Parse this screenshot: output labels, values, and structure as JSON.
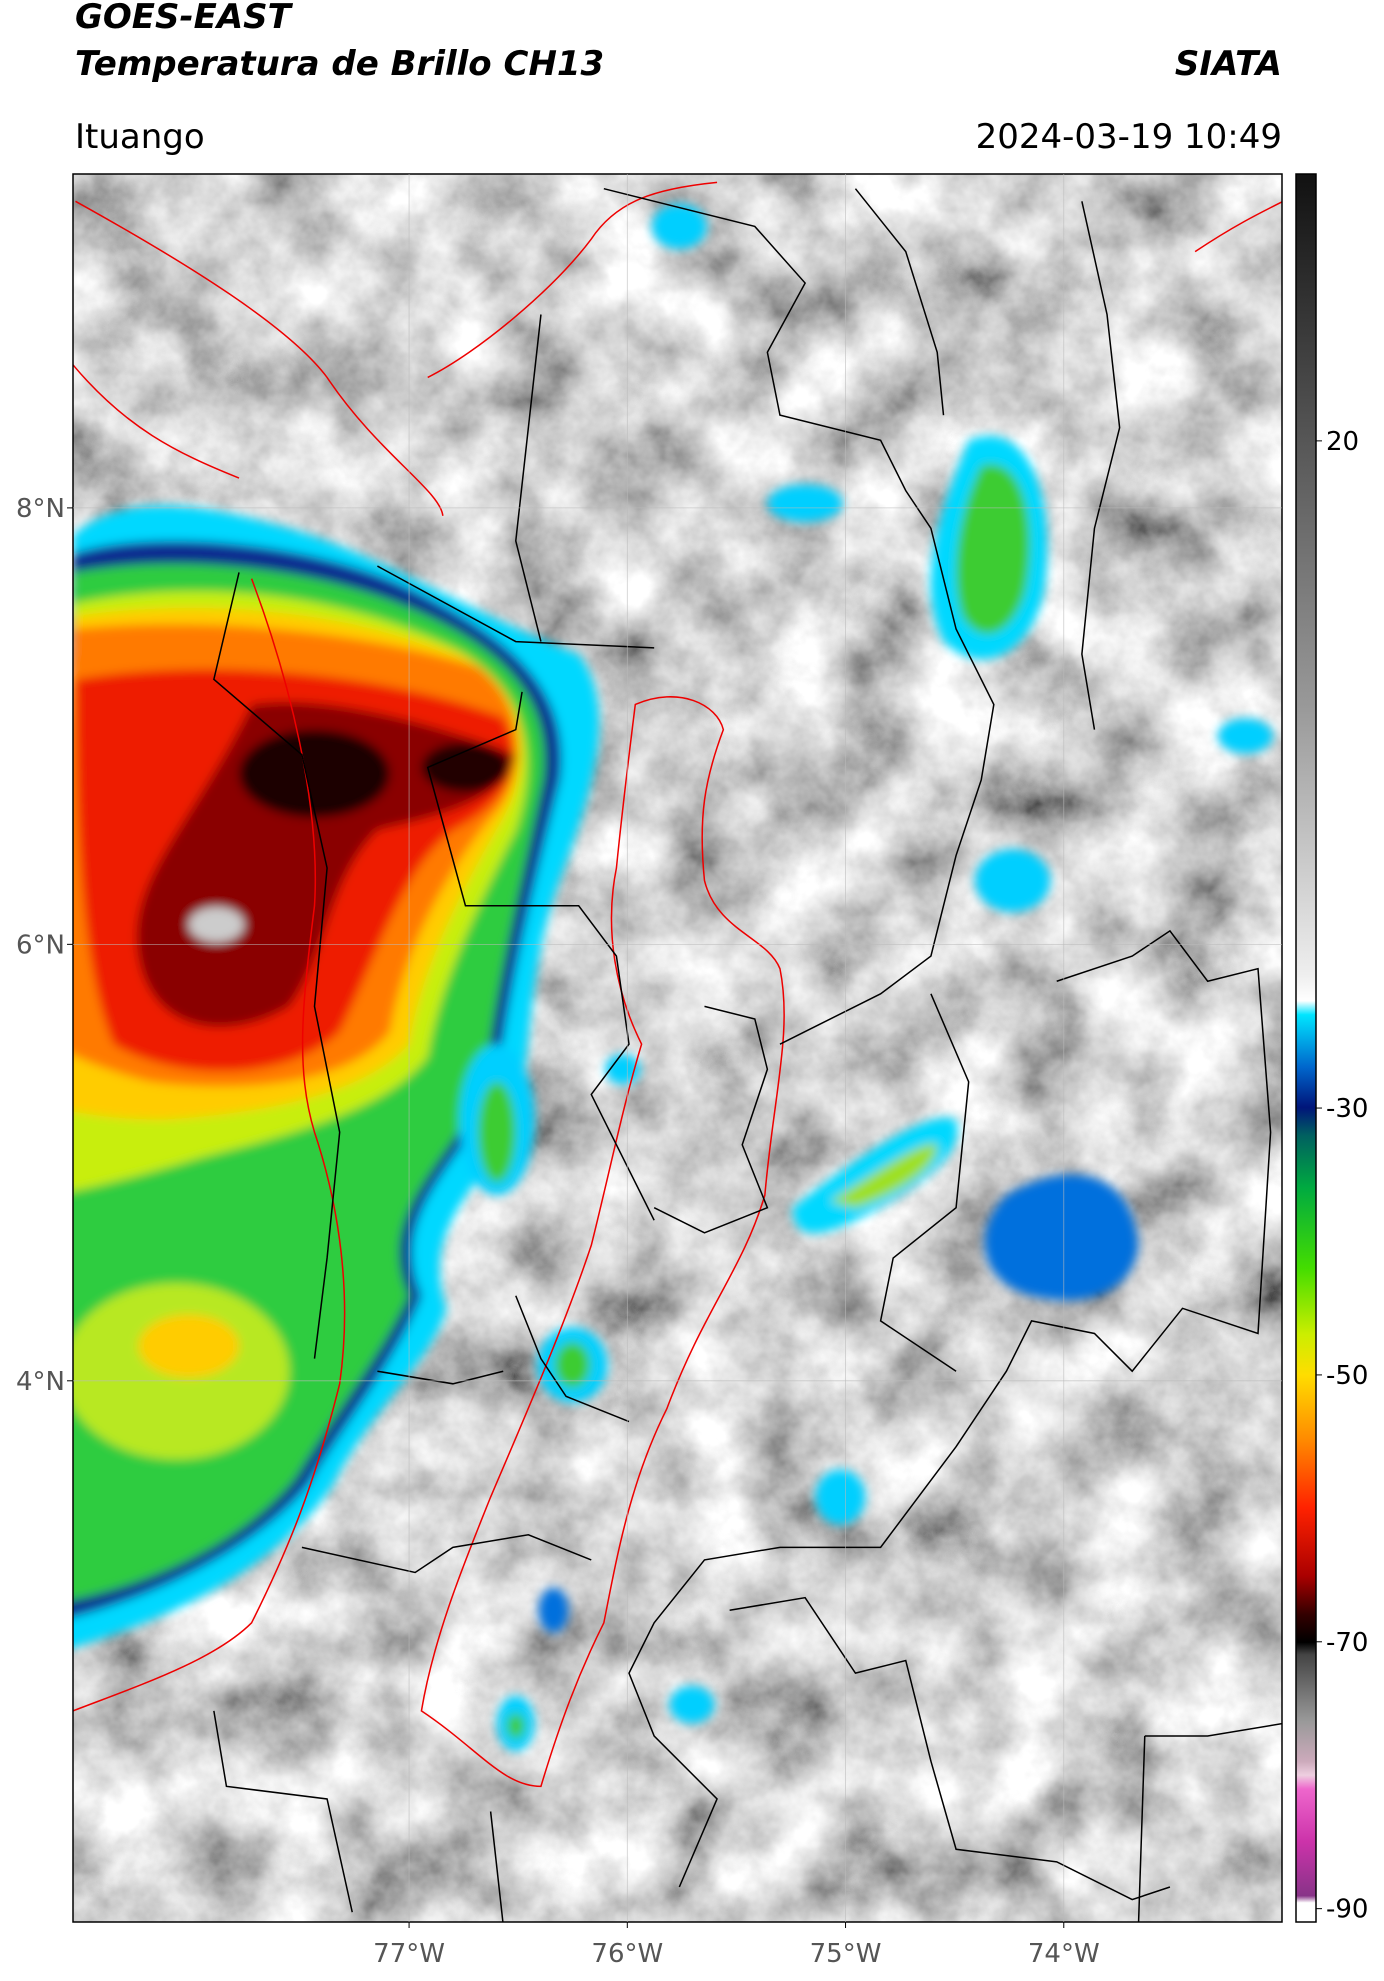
{
  "header": {
    "title": "GOES-EAST",
    "subtitle": "Temperatura de Brillo CH13",
    "source": "SIATA",
    "location": "Ituango",
    "timestamp": "2024-03-19 10:49"
  },
  "map": {
    "xlim": [
      -78.54,
      -73.0
    ],
    "ylim": [
      1.52,
      9.53
    ],
    "xticks": [
      {
        "value": -77,
        "label": "77°W"
      },
      {
        "value": -76,
        "label": "76°W"
      },
      {
        "value": -75,
        "label": "75°W"
      },
      {
        "value": -74,
        "label": "74°W"
      }
    ],
    "yticks": [
      {
        "value": 4,
        "label": "4°N"
      },
      {
        "value": 6,
        "label": "6°N"
      },
      {
        "value": 8,
        "label": "8°N"
      }
    ],
    "grid": true
  },
  "colorbar": {
    "ylim": [
      -91,
      40
    ],
    "yticks": [
      20,
      -30,
      -50,
      -70,
      -90
    ]
  }
}
